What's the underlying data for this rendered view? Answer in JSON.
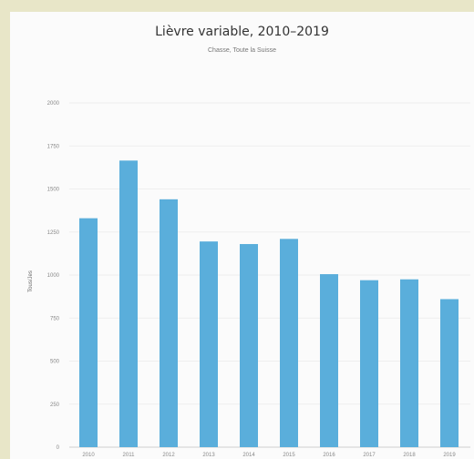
{
  "chart_data": {
    "type": "bar",
    "title": "Lièvre variable, 2010–2019",
    "subtitle": "Chasse, Toute la Suisse",
    "xlabel": "",
    "ylabel": "Tous/Jes",
    "categories": [
      "2010",
      "2011",
      "2012",
      "2013",
      "2014",
      "2015",
      "2016",
      "2017",
      "2018",
      "2019"
    ],
    "values": [
      1330,
      1665,
      1440,
      1195,
      1180,
      1210,
      1005,
      970,
      975,
      860
    ],
    "ylim": [
      0,
      2000
    ],
    "yticks": [
      0,
      250,
      500,
      750,
      1000,
      1250,
      1500,
      1750,
      2000
    ],
    "grid": true,
    "bar_color": "#5aaedb"
  }
}
